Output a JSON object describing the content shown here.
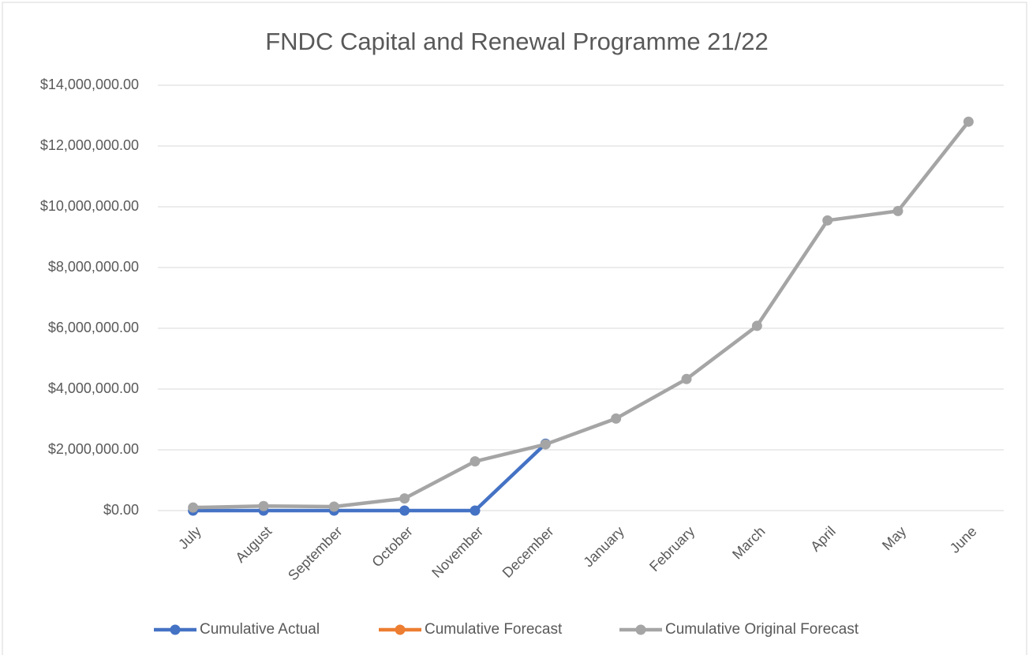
{
  "chart_data": {
    "type": "line",
    "title": "FNDC Capital and Renewal Programme 21/22",
    "categories": [
      "July",
      "August",
      "September",
      "October",
      "November",
      "December",
      "January",
      "February",
      "March",
      "April",
      "May",
      "June"
    ],
    "series": [
      {
        "name": "Cumulative Actual",
        "color": "#4472c4",
        "values": [
          0,
          0,
          0,
          0,
          0,
          2200000,
          null,
          null,
          null,
          null,
          null,
          null
        ]
      },
      {
        "name": "Cumulative Forecast",
        "color": "#ed7d31",
        "values": [
          null,
          null,
          null,
          null,
          null,
          null,
          null,
          null,
          null,
          null,
          null,
          null
        ]
      },
      {
        "name": "Cumulative Original Forecast",
        "color": "#a5a5a5",
        "values": [
          100000,
          150000,
          130000,
          400000,
          1620000,
          2180000,
          3030000,
          4330000,
          6080000,
          9550000,
          9860000,
          12800000
        ]
      }
    ],
    "ylim": [
      0,
      14000000
    ],
    "yticks": [
      {
        "value": 0,
        "label": "$0.00"
      },
      {
        "value": 2000000,
        "label": "$2,000,000.00"
      },
      {
        "value": 4000000,
        "label": "$4,000,000.00"
      },
      {
        "value": 6000000,
        "label": "$6,000,000.00"
      },
      {
        "value": 8000000,
        "label": "$8,000,000.00"
      },
      {
        "value": 10000000,
        "label": "$10,000,000.00"
      },
      {
        "value": 12000000,
        "label": "$12,000,000.00"
      },
      {
        "value": 14000000,
        "label": "$14,000,000.00"
      }
    ],
    "grid": true,
    "legend": "bottom"
  }
}
